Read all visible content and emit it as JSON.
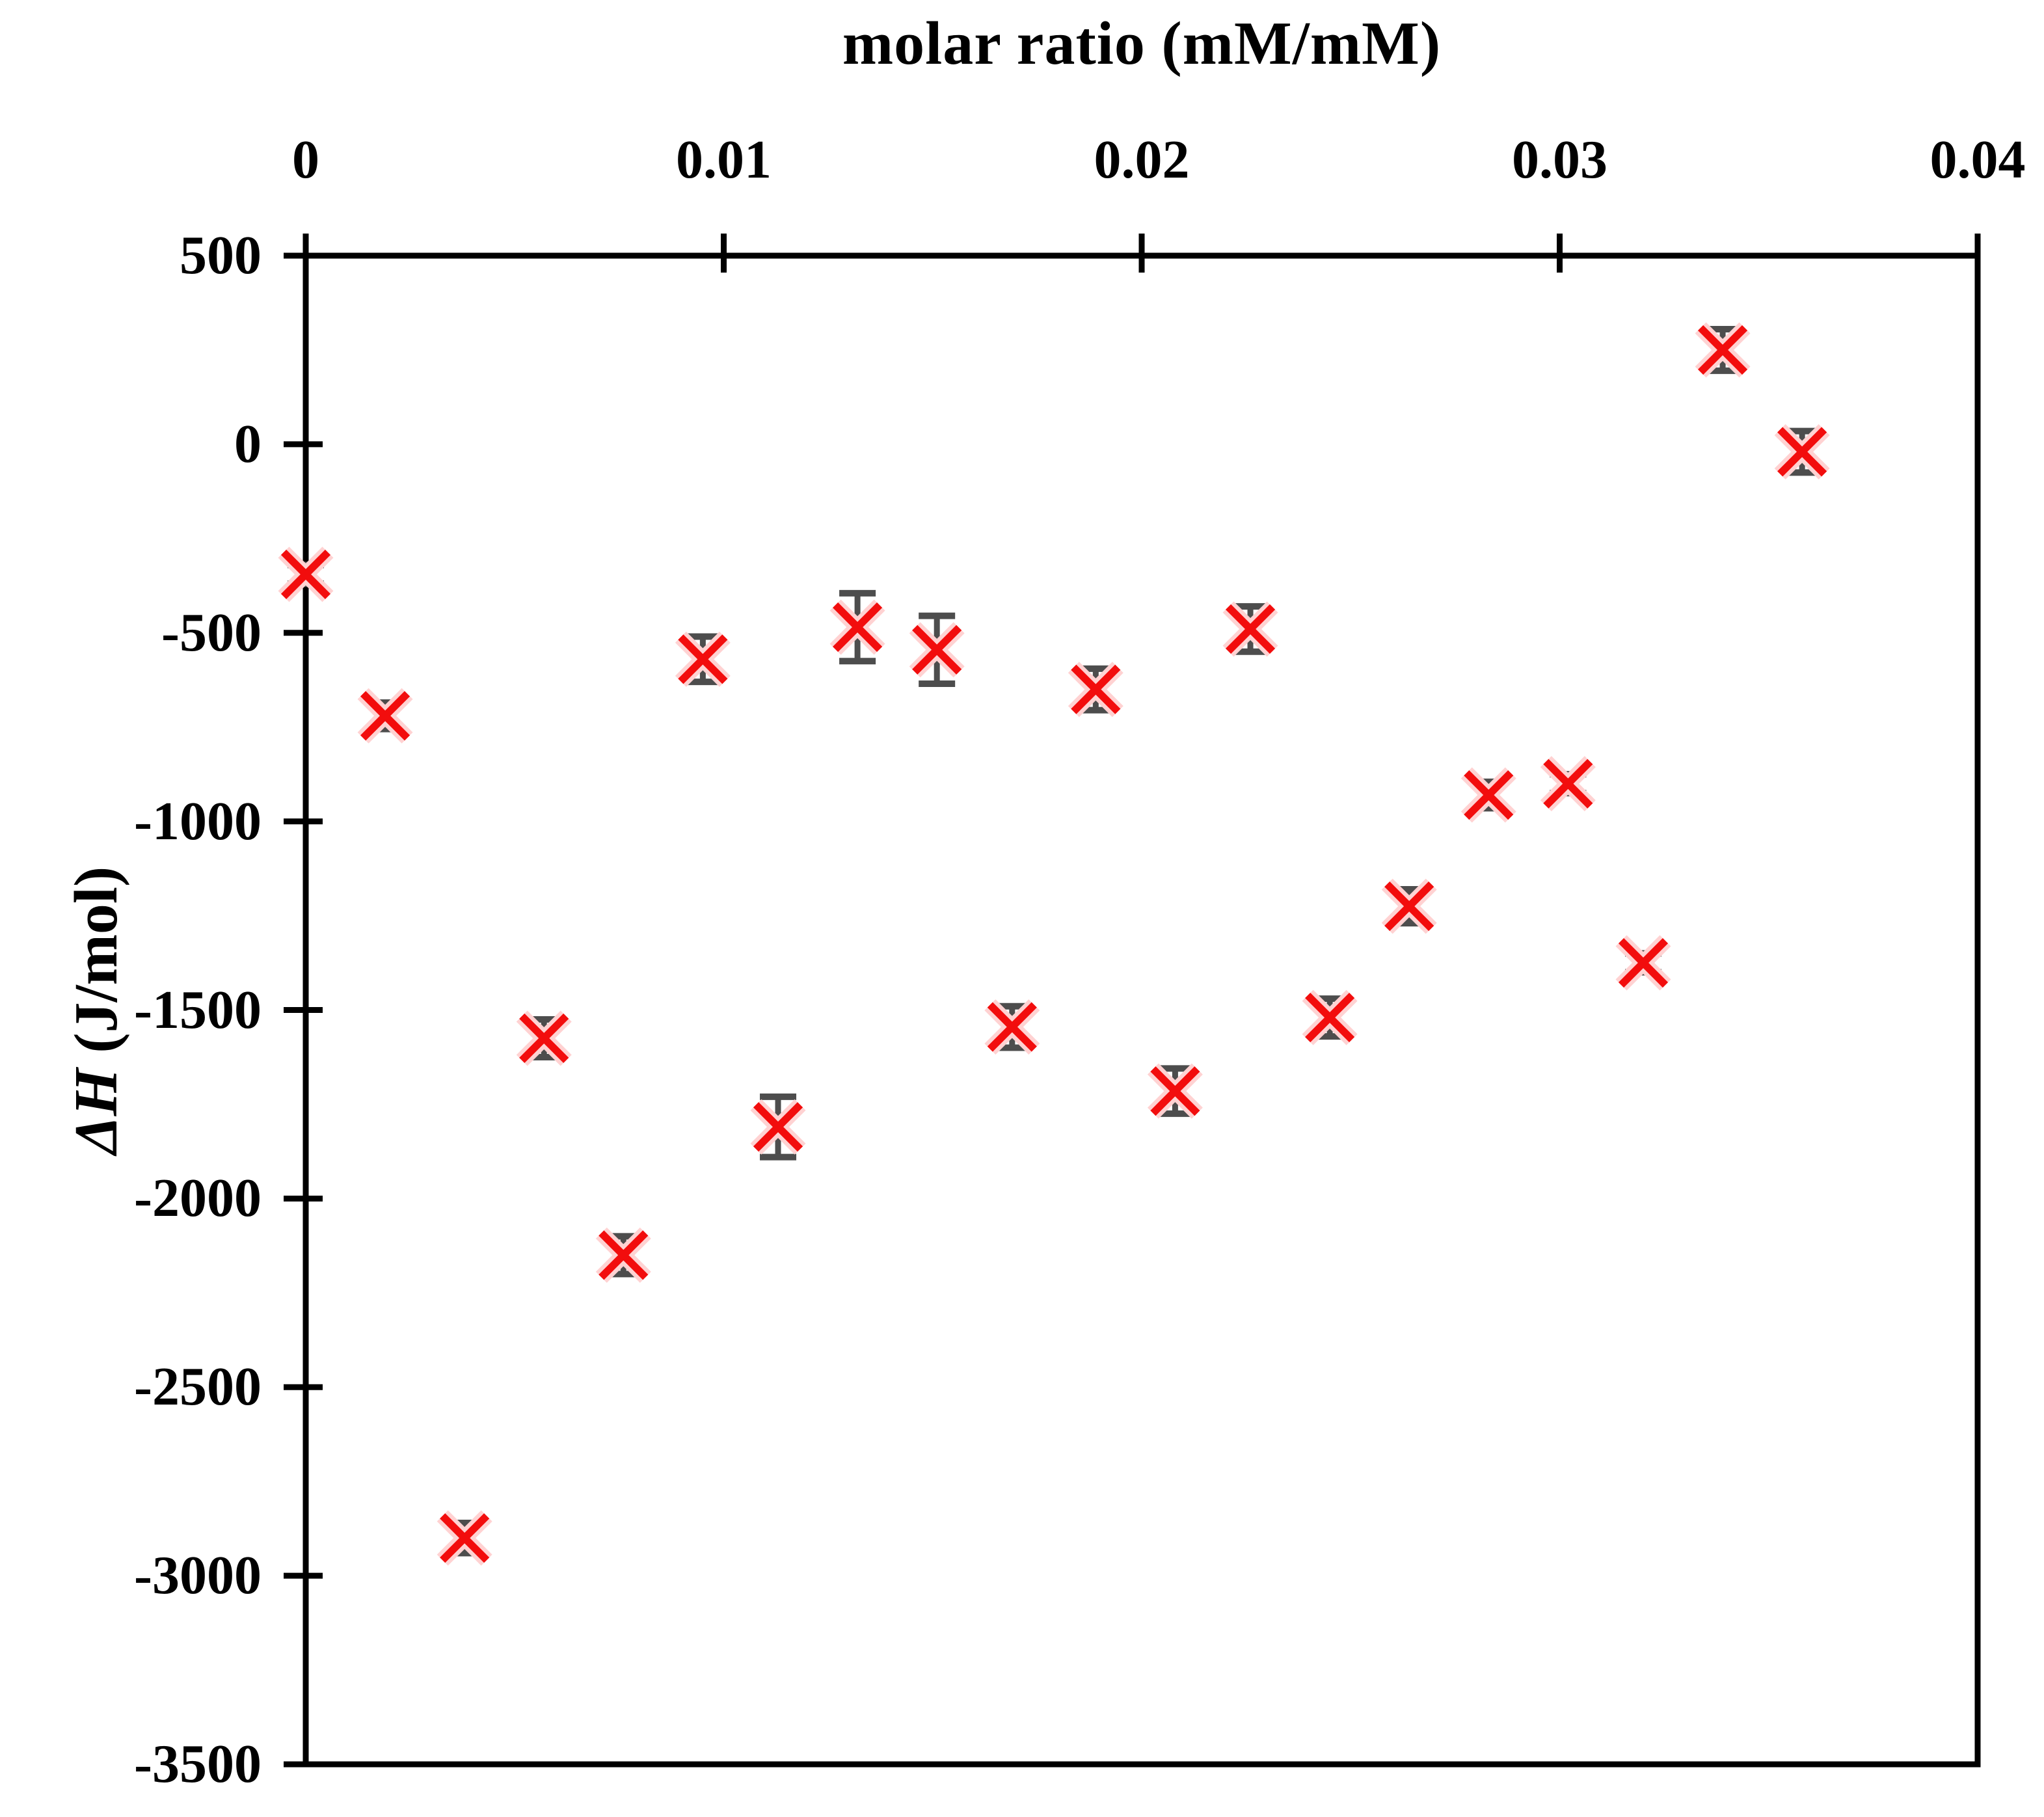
{
  "title": {
    "text": "molar ratio (mM/mM)"
  },
  "y_axis": {
    "label_symbol": "ΔH",
    "label_units": " (J/mol)",
    "tick_labels": [
      "500",
      "0",
      "-500",
      "-1000",
      "-1500",
      "-2000",
      "-2500",
      "-3000",
      "-3500"
    ]
  },
  "x_axis": {
    "tick_labels": [
      "0",
      "0.01",
      "0.02",
      "0.03",
      "0.04"
    ]
  },
  "colors": {
    "axis": "#000000",
    "marker_red": "#f20d0d",
    "marker_halo": "#ffd2d2",
    "error_bar": "#4d4d4d"
  },
  "chart_data": {
    "type": "scatter",
    "title": "",
    "xlabel": "molar ratio (mM/mM)",
    "ylabel": "ΔH (J/mol)",
    "xlim": [
      0,
      0.04
    ],
    "ylim": [
      -3500,
      500
    ],
    "x_ticks": [
      0,
      0.01,
      0.02,
      0.03,
      0.04
    ],
    "y_ticks": [
      500,
      0,
      -500,
      -1000,
      -1500,
      -2000,
      -2500,
      -3000,
      -3500
    ],
    "grid": false,
    "legend": "none",
    "x_axis_position": "top",
    "series": [
      {
        "name": "ΔH",
        "marker": "red-x-with-gray-error-bars",
        "points": [
          {
            "x": 0.0,
            "y": -345,
            "yerr": 25
          },
          {
            "x": 0.0019,
            "y": -720,
            "yerr": 35
          },
          {
            "x": 0.0038,
            "y": -2900,
            "yerr": 40
          },
          {
            "x": 0.0057,
            "y": -1575,
            "yerr": 50
          },
          {
            "x": 0.0076,
            "y": -2150,
            "yerr": 50
          },
          {
            "x": 0.0095,
            "y": -570,
            "yerr": 60
          },
          {
            "x": 0.0113,
            "y": -1810,
            "yerr": 80
          },
          {
            "x": 0.0132,
            "y": -485,
            "yerr": 90
          },
          {
            "x": 0.0151,
            "y": -545,
            "yerr": 90
          },
          {
            "x": 0.0169,
            "y": -1545,
            "yerr": 55
          },
          {
            "x": 0.0189,
            "y": -650,
            "yerr": 55
          },
          {
            "x": 0.0208,
            "y": -1715,
            "yerr": 60
          },
          {
            "x": 0.0226,
            "y": -490,
            "yerr": 60
          },
          {
            "x": 0.0245,
            "y": -1520,
            "yerr": 50
          },
          {
            "x": 0.0264,
            "y": -1225,
            "yerr": 45
          },
          {
            "x": 0.0283,
            "y": -930,
            "yerr": 35
          },
          {
            "x": 0.0302,
            "y": -900,
            "yerr": 25
          },
          {
            "x": 0.032,
            "y": -1375,
            "yerr": 25
          },
          {
            "x": 0.0339,
            "y": 250,
            "yerr": 55
          },
          {
            "x": 0.0358,
            "y": -20,
            "yerr": 55
          }
        ]
      }
    ]
  }
}
